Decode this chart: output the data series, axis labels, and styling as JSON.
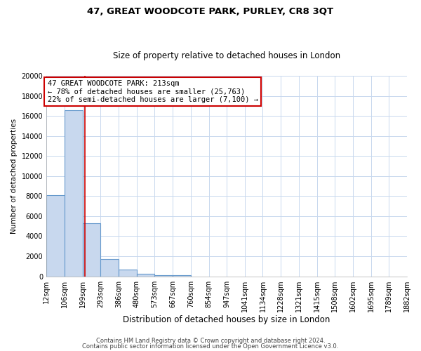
{
  "title": "47, GREAT WOODCOTE PARK, PURLEY, CR8 3QT",
  "subtitle": "Size of property relative to detached houses in London",
  "xlabel": "Distribution of detached houses by size in London",
  "ylabel": "Number of detached properties",
  "bar_edges": [
    12,
    106,
    199,
    293,
    386,
    480,
    573,
    667,
    760,
    854,
    947,
    1041,
    1134,
    1228,
    1321,
    1415,
    1508,
    1602,
    1695,
    1789,
    1882
  ],
  "bar_heights": [
    8100,
    16600,
    5300,
    1750,
    650,
    280,
    130,
    110,
    0,
    0,
    0,
    0,
    0,
    0,
    0,
    0,
    0,
    0,
    0,
    0
  ],
  "bar_color": "#c8d8ee",
  "bar_edge_color": "#6699cc",
  "vline_x": 213,
  "vline_color": "#cc0000",
  "ylim": [
    0,
    20000
  ],
  "yticks": [
    0,
    2000,
    4000,
    6000,
    8000,
    10000,
    12000,
    14000,
    16000,
    18000,
    20000
  ],
  "xtick_labels": [
    "12sqm",
    "106sqm",
    "199sqm",
    "293sqm",
    "386sqm",
    "480sqm",
    "573sqm",
    "667sqm",
    "760sqm",
    "854sqm",
    "947sqm",
    "1041sqm",
    "1134sqm",
    "1228sqm",
    "1321sqm",
    "1415sqm",
    "1508sqm",
    "1602sqm",
    "1695sqm",
    "1789sqm",
    "1882sqm"
  ],
  "annotation_title": "47 GREAT WOODCOTE PARK: 213sqm",
  "annotation_line1": "← 78% of detached houses are smaller (25,763)",
  "annotation_line2": "22% of semi-detached houses are larger (7,100) →",
  "annotation_box_color": "#ffffff",
  "annotation_border_color": "#cc0000",
  "footnote1": "Contains HM Land Registry data © Crown copyright and database right 2024.",
  "footnote2": "Contains public sector information licensed under the Open Government Licence v3.0.",
  "background_color": "#ffffff",
  "grid_color": "#c8d8ee"
}
